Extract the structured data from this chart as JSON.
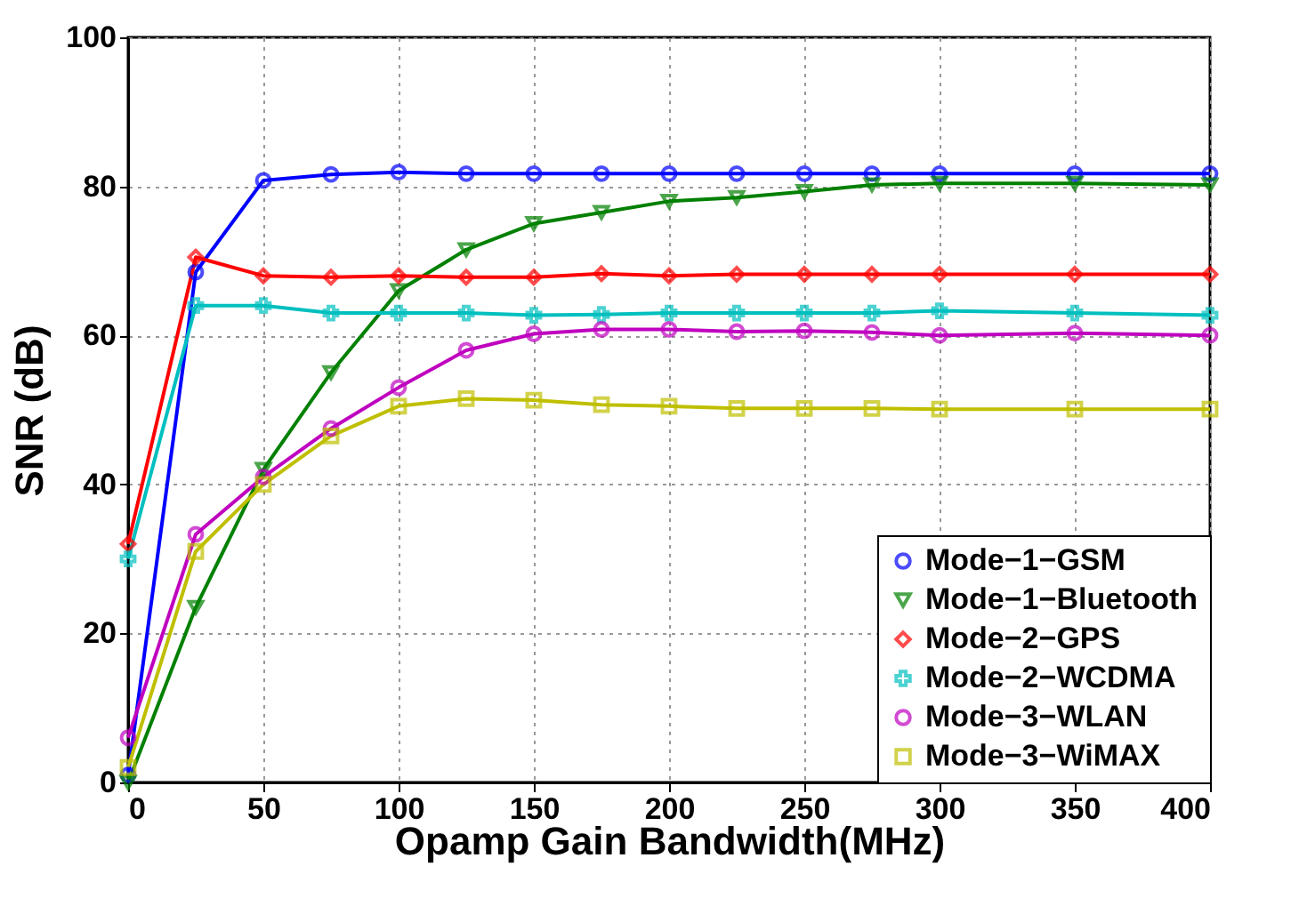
{
  "chart_data": {
    "type": "line",
    "xlabel": "Opamp Gain Bandwidth(MHz)",
    "ylabel": "SNR (dB)",
    "x": [
      0,
      25,
      50,
      75,
      100,
      125,
      150,
      175,
      200,
      225,
      250,
      275,
      300,
      350,
      400
    ],
    "xlim": [
      0,
      400
    ],
    "xticks": [
      0,
      50,
      100,
      150,
      200,
      250,
      300,
      350,
      400
    ],
    "ylim": [
      0,
      100
    ],
    "yticks": [
      0,
      20,
      40,
      60,
      80,
      100
    ],
    "grid": true,
    "legend": "bottom right",
    "line_style": "solid",
    "series": [
      {
        "name": "Mode−1−GSM",
        "color": "#0000ff",
        "marker": "circle",
        "values": [
          1,
          68.5,
          80.8,
          81.6,
          81.9,
          81.7,
          81.7,
          81.7,
          81.7,
          81.7,
          81.7,
          81.7,
          81.7,
          81.7,
          81.7
        ]
      },
      {
        "name": "Mode−1−Bluetooth",
        "color": "#008000",
        "marker": "triangle",
        "values": [
          0,
          23.5,
          42,
          55,
          66,
          71.5,
          75,
          76.5,
          78,
          78.5,
          79.3,
          80.2,
          80.4,
          80.4,
          80.2
        ]
      },
      {
        "name": "Mode−2−GPS",
        "color": "#ff0000",
        "marker": "diamond",
        "values": [
          32,
          70.5,
          68,
          67.8,
          68,
          67.8,
          67.8,
          68.3,
          68,
          68.2,
          68.2,
          68.2,
          68.2,
          68.2,
          68.2
        ]
      },
      {
        "name": "Mode−2−WCDMA",
        "color": "#00bfbf",
        "marker": "cross",
        "values": [
          30,
          64,
          64,
          63,
          63,
          63,
          62.7,
          62.8,
          63,
          63,
          63,
          63,
          63.3,
          63,
          62.7
        ]
      },
      {
        "name": "Mode−3−WLAN",
        "color": "#bf00bf",
        "marker": "circle",
        "values": [
          6,
          33.3,
          41,
          47.5,
          53,
          58,
          60.2,
          60.8,
          60.8,
          60.5,
          60.6,
          60.4,
          60,
          60.3,
          60
        ]
      },
      {
        "name": "Mode−3−WiMAX",
        "color": "#bfbf00",
        "marker": "square",
        "values": [
          2,
          31,
          40,
          46.5,
          50.5,
          51.5,
          51.3,
          50.7,
          50.5,
          50.2,
          50.2,
          50.2,
          50.1,
          50.1,
          50.1
        ]
      }
    ]
  }
}
